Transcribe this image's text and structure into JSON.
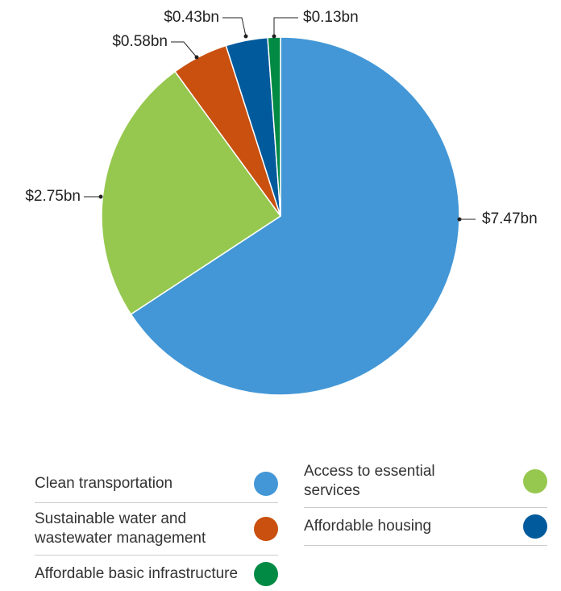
{
  "chart_data": {
    "type": "pie",
    "categories": [
      "Clean transportation",
      "Access to essential services",
      "Sustainable water and wastewater management",
      "Affordable housing",
      "Affordable basic infrastructure"
    ],
    "values": [
      7.47,
      2.75,
      0.58,
      0.43,
      0.13
    ],
    "value_labels": [
      "$7.47bn",
      "$2.75bn",
      "$0.58bn",
      "$0.43bn",
      "$0.13bn"
    ],
    "colors": [
      "#4397d6",
      "#96c84f",
      "#c9500f",
      "#005a9c",
      "#008a43"
    ]
  }
}
